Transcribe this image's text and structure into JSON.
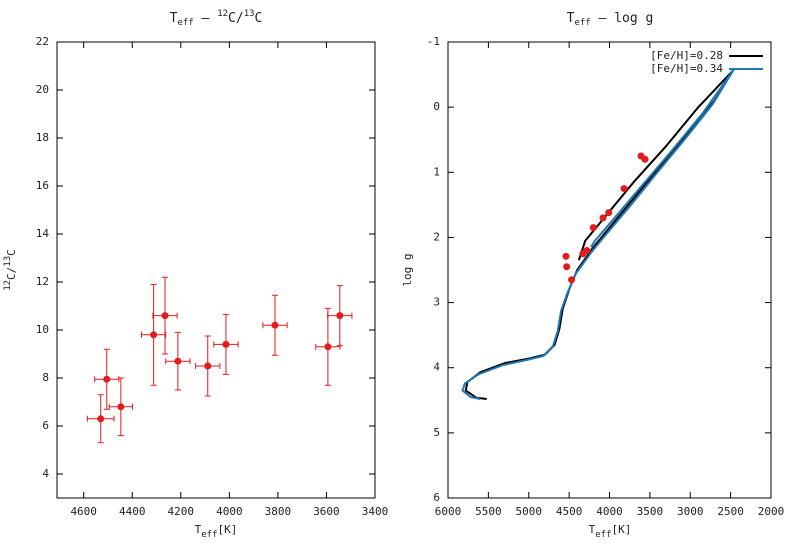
{
  "chart_data": [
    {
      "type": "scatter",
      "title": [
        "T",
        "eff",
        " – ",
        "12",
        "C/",
        "13",
        "C"
      ],
      "x_label": [
        "T",
        "eff",
        "[K]"
      ],
      "y_label": [
        "12",
        "C/",
        "13",
        "C"
      ],
      "color": "#e41a1c",
      "x": [
        4530,
        4505,
        4447,
        4312,
        4265,
        4212,
        4089,
        4014,
        3812,
        3594,
        3545
      ],
      "values": [
        6.3,
        7.95,
        6.8,
        9.8,
        10.6,
        8.7,
        8.5,
        9.4,
        10.2,
        9.3,
        10.6
      ],
      "xerr": [
        55,
        50,
        48,
        50,
        50,
        50,
        50,
        50,
        50,
        50,
        50
      ],
      "yerr": [
        1.0,
        1.25,
        1.2,
        2.1,
        1.6,
        1.2,
        1.25,
        1.25,
        1.25,
        1.6,
        1.25
      ],
      "xlim": [
        4710,
        3400
      ],
      "xticks": [
        4600,
        4400,
        4200,
        4000,
        3800,
        3600,
        3400
      ],
      "ylim": [
        3,
        22
      ],
      "yticks": [
        4,
        6,
        8,
        10,
        12,
        14,
        16,
        18,
        20,
        22
      ]
    },
    {
      "type": "line",
      "title": [
        "T",
        "eff",
        " – log g"
      ],
      "x_label": [
        "T",
        "eff",
        "[K]"
      ],
      "y_label": "log g",
      "legend": "top-right",
      "series": [
        {
          "name": "[Fe/H]=0.28",
          "color": "#000000",
          "x": [
            5520,
            5650,
            5780,
            5760,
            5600,
            5300,
            5000,
            4800,
            4680,
            4620,
            4580,
            4500,
            4400,
            4200,
            4000,
            3700,
            3400,
            3000,
            2700,
            2480,
            2900,
            3300,
            3700,
            4000,
            4300,
            4380
          ],
          "values": [
            4.48,
            4.46,
            4.35,
            4.22,
            4.07,
            3.93,
            3.86,
            3.8,
            3.65,
            3.4,
            3.1,
            2.8,
            2.5,
            2.15,
            1.85,
            1.4,
            0.95,
            0.35,
            -0.1,
            -0.55,
            0.0,
            0.6,
            1.15,
            1.6,
            2.05,
            2.35
          ]
        },
        {
          "name": "[Fe/H]=0.34",
          "color": "#1f78b4",
          "x": [
            5600,
            5720,
            5820,
            5790,
            5620,
            5320,
            5020,
            4820,
            4700,
            4640,
            4600,
            4520,
            4420,
            4220,
            4020,
            3720,
            3420,
            3020,
            2720,
            2460,
            2850,
            3250,
            3650,
            3950,
            4180,
            4230
          ],
          "values": [
            4.48,
            4.45,
            4.35,
            4.24,
            4.1,
            3.96,
            3.88,
            3.82,
            3.67,
            3.43,
            3.13,
            2.85,
            2.56,
            2.22,
            1.92,
            1.48,
            1.02,
            0.42,
            -0.05,
            -0.58,
            0.1,
            0.7,
            1.28,
            1.72,
            2.05,
            2.15
          ]
        },
        {
          "type": "scatter",
          "color": "#e41a1c",
          "x": [
            4539,
            4530,
            4470,
            4330,
            4280,
            4200,
            4080,
            4010,
            3820,
            3610,
            3560
          ],
          "values": [
            2.29,
            2.45,
            2.65,
            2.25,
            2.2,
            1.85,
            1.7,
            1.62,
            1.25,
            0.75,
            0.8
          ]
        }
      ],
      "xlim": [
        6000,
        2000
      ],
      "xticks": [
        6000,
        5500,
        5000,
        4500,
        4000,
        3500,
        3000,
        2500,
        2000
      ],
      "ylim": [
        6,
        -1
      ],
      "yticks": [
        -1,
        0,
        1,
        2,
        3,
        4,
        5,
        6
      ]
    }
  ]
}
